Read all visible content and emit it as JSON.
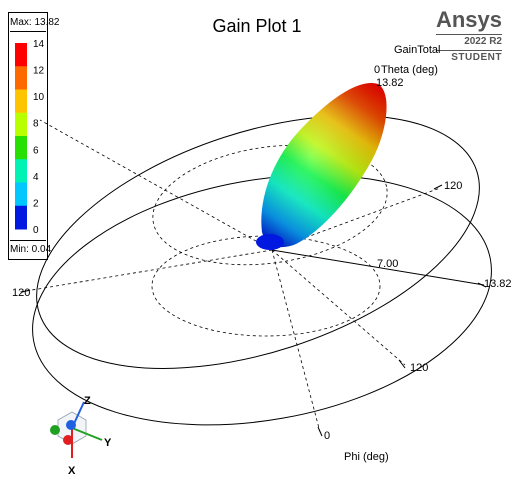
{
  "chart_data": {
    "type": "3d-polar-gain",
    "title": "Gain Plot 1",
    "quantity": "GainTotal",
    "axis_labels": {
      "theta": "Theta (deg)",
      "phi": "Phi (deg)"
    },
    "tick_labels": {
      "theta_0": "0",
      "theta_120": "120",
      "phi_0": "0",
      "phi_120_right": "120",
      "phi_120_left": "120",
      "phi_120_bottom": "120",
      "radius_mid": "7.00",
      "radius_max_right": "13.82",
      "radius_max_top": "13.82"
    },
    "legend": {
      "max_label": "Max: 13.82",
      "min_label": "Min: 0.04",
      "ticks": [
        "14",
        "12",
        "10",
        "8",
        "6",
        "4",
        "2",
        "0"
      ],
      "colors": [
        "#ff0000",
        "#ff6a00",
        "#ffc400",
        "#b8ff00",
        "#28e000",
        "#00f2b4",
        "#00c8ff",
        "#0018e0"
      ]
    },
    "max_gain": 13.82,
    "min_gain": 0.04,
    "colormap": [
      "#0000e0",
      "#00a0ff",
      "#00ffd0",
      "#00ff40",
      "#c0ff00",
      "#ffd000",
      "#ff5000",
      "#ff0000"
    ]
  },
  "brand": {
    "name": "Ansys",
    "version": "2022 R2",
    "edition": "STUDENT"
  },
  "triad": {
    "x": "X",
    "y": "Y",
    "z": "Z",
    "x_color": "#e02020",
    "y_color": "#20a020",
    "z_color": "#2060e0"
  }
}
